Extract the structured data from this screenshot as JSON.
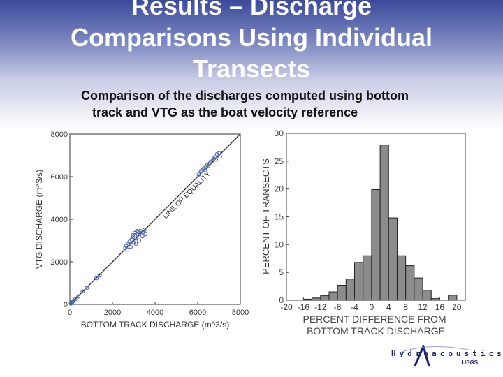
{
  "slide": {
    "title": "Results – Discharge\nComparisons Using Individual\nTransects",
    "subtitle_line1": "Comparison of the discharges computed using bottom",
    "subtitle_line2": "track and VTG as the boat velocity reference",
    "logo_text": "Hydroacoustics",
    "logo_sub": "USGS"
  },
  "chart_data": [
    {
      "type": "scatter",
      "xlabel": "BOTTOM TRACK DISCHARGE (m^3/s)",
      "ylabel": "VTG DISCHARGE (m^3/s)",
      "xlim": [
        0,
        8000
      ],
      "ylim": [
        0,
        8000
      ],
      "xticks": [
        0,
        2000,
        4000,
        6000,
        8000
      ],
      "yticks": [
        0,
        2000,
        4000,
        6000,
        8000
      ],
      "xtick_labels": [
        "0",
        "2000",
        "4000",
        "6000",
        "8000"
      ],
      "ytick_labels": [
        "0",
        "2000",
        "4000",
        "6000",
        "8000"
      ],
      "reference_line_label": "LINE OF EQUALITY",
      "marker_color": "#4f66a8",
      "points": [
        [
          50,
          40
        ],
        [
          80,
          70
        ],
        [
          100,
          110
        ],
        [
          140,
          130
        ],
        [
          180,
          170
        ],
        [
          250,
          240
        ],
        [
          400,
          380
        ],
        [
          600,
          610
        ],
        [
          800,
          780
        ],
        [
          1250,
          1230
        ],
        [
          1400,
          1370
        ],
        [
          2600,
          2650
        ],
        [
          2650,
          2750
        ],
        [
          2700,
          2580
        ],
        [
          2750,
          2850
        ],
        [
          2800,
          2950
        ],
        [
          2850,
          2700
        ],
        [
          2900,
          3050
        ],
        [
          2950,
          3150
        ],
        [
          3000,
          2900
        ],
        [
          3050,
          3250
        ],
        [
          3100,
          3100
        ],
        [
          3150,
          3300
        ],
        [
          3200,
          3400
        ],
        [
          3250,
          3000
        ],
        [
          3300,
          3450
        ],
        [
          3350,
          3350
        ],
        [
          3400,
          3200
        ],
        [
          3450,
          3400
        ],
        [
          3500,
          3500
        ],
        [
          3550,
          3300
        ],
        [
          3100,
          2850
        ],
        [
          3050,
          3350
        ],
        [
          2950,
          3250
        ],
        [
          3150,
          3450
        ],
        [
          6050,
          6100
        ],
        [
          6150,
          6250
        ],
        [
          6250,
          6350
        ],
        [
          6300,
          6400
        ],
        [
          6400,
          6450
        ],
        [
          6450,
          6550
        ],
        [
          6550,
          6600
        ],
        [
          6600,
          6700
        ],
        [
          6700,
          6750
        ],
        [
          6750,
          6850
        ],
        [
          6800,
          6900
        ],
        [
          6850,
          6800
        ],
        [
          6900,
          7050
        ],
        [
          7000,
          7100
        ],
        [
          7050,
          6950
        ],
        [
          6500,
          6500
        ],
        [
          6200,
          6300
        ],
        [
          6350,
          6300
        ]
      ]
    },
    {
      "type": "bar",
      "xlabel": "PERCENT DIFFERENCE FROM\nBOTTOM TRACK DISCHARGE",
      "ylabel": "PERCENT OF TRANSECTS",
      "xlim": [
        -20,
        22
      ],
      "ylim": [
        0,
        30
      ],
      "bin_width": 2,
      "bin_starts": [
        -20,
        -18,
        -16,
        -14,
        -12,
        -10,
        -8,
        -6,
        -4,
        -2,
        0,
        2,
        4,
        6,
        8,
        10,
        12,
        14,
        16,
        18,
        20
      ],
      "values": [
        0,
        0,
        0.2,
        0.4,
        0.8,
        1.5,
        2.7,
        3.8,
        6.8,
        8.0,
        19.9,
        27.9,
        14.8,
        8.0,
        6.2,
        4.0,
        1.8,
        0.3,
        0.0,
        0.9,
        0
      ],
      "xticks": [
        -20,
        -16,
        -12,
        -8,
        -4,
        0,
        4,
        8,
        12,
        16,
        20
      ],
      "xtick_labels": [
        "-20",
        "-16",
        "-12",
        "-8",
        "-4",
        "0",
        "4",
        "8",
        "12",
        "16",
        "20"
      ],
      "yticks": [
        0,
        5,
        10,
        15,
        20,
        25,
        30
      ],
      "ytick_labels": [
        "0",
        "5",
        "10",
        "15",
        "20",
        "25",
        "30"
      ],
      "bar_color": "#8c8c8c"
    }
  ]
}
